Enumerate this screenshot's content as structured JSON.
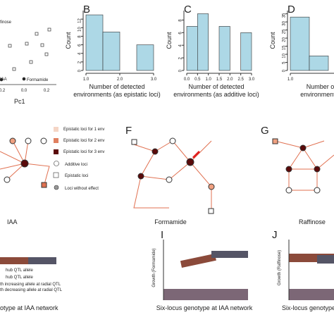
{
  "panel_a": {
    "labels": [
      "finose",
      "IAA",
      "Formamide"
    ],
    "xticks": [
      "-0.2",
      "0.0",
      "0.2"
    ],
    "xlabel": "Pc1"
  },
  "histograms": [
    {
      "letter": "B",
      "type": "histogram",
      "ylabel": "Count",
      "xlabel": [
        "Number of detected",
        "environments (as epistatic loci)"
      ],
      "bins": [
        1.0,
        1.5,
        2.0,
        2.5,
        3.0
      ],
      "counts": [
        13,
        9,
        0,
        6
      ],
      "xlim": [
        1.0,
        3.0
      ],
      "ylim": [
        0,
        14
      ],
      "xticks": [
        {
          "value": 1,
          "label": "1.0"
        },
        {
          "value": 2,
          "label": "2.0"
        },
        {
          "value": 3,
          "label": "3.0"
        }
      ],
      "yticks": [
        0,
        2,
        4,
        6,
        8,
        10,
        12
      ],
      "color": "#add8e6"
    },
    {
      "letter": "C",
      "type": "histogram",
      "ylabel": "Count",
      "xlabel": [
        "Number of detected",
        "environments (as additive loci)"
      ],
      "bins": [
        0.0,
        0.5,
        1.0,
        1.5,
        2.0,
        2.5,
        3.0
      ],
      "counts": [
        7,
        9,
        0,
        7,
        0,
        6
      ],
      "xlim": [
        0.0,
        3.0
      ],
      "ylim": [
        0,
        9.5
      ],
      "xticks": [
        {
          "value": 0,
          "label": "0.0"
        },
        {
          "value": 0.5,
          "label": "0.5"
        },
        {
          "value": 1,
          "label": "1.0"
        },
        {
          "value": 1.5,
          "label": "1.5"
        },
        {
          "value": 2,
          "label": "2.0"
        },
        {
          "value": 2.5,
          "label": "2.5"
        },
        {
          "value": 3,
          "label": "3.0"
        }
      ],
      "yticks": [
        0,
        2,
        4,
        6,
        8
      ],
      "color": "#add8e6"
    },
    {
      "letter": "D",
      "type": "histogram",
      "ylabel": "Count",
      "xlabel": [
        "Number of de",
        "environments (pai"
      ],
      "bins": [
        1.0,
        1.5,
        2.0
      ],
      "counts": [
        33,
        9
      ],
      "xlim": [
        1.0,
        3.0
      ],
      "ylim": [
        0,
        37
      ],
      "xticks": [
        {
          "value": 1,
          "label": "1.0"
        }
      ],
      "yticks": [
        0,
        5,
        10,
        15,
        20,
        25,
        30,
        35
      ],
      "color": "#add8e6"
    }
  ],
  "networks": [
    {
      "letter": "F",
      "name": "Formamide"
    },
    {
      "letter": "G",
      "name": "Raffinose"
    },
    {
      "name": "IAA"
    }
  ],
  "legend": [
    "Epistatic loci for 1 env",
    "Epistatic loci for 2 env",
    "Epistatic loci for 3 env",
    "Additive loci",
    "Epistatic loci",
    "Loci without effect"
  ],
  "bottom": {
    "h_legend": [
      "hub QTL allele",
      "hub QTL allele",
      "th increasing allele at radial QTL",
      "th decreasing allele at radial QTL"
    ],
    "h_xlabel": "otype at IAA network",
    "i": {
      "letter": "I",
      "ylabel": "Growth (Formamide)",
      "xlabel": "Six-locus genotype at IAA network"
    },
    "j": {
      "letter": "J",
      "ylabel": "Growth (Raffinose)",
      "xlabel": "Six-locus genotype"
    }
  }
}
